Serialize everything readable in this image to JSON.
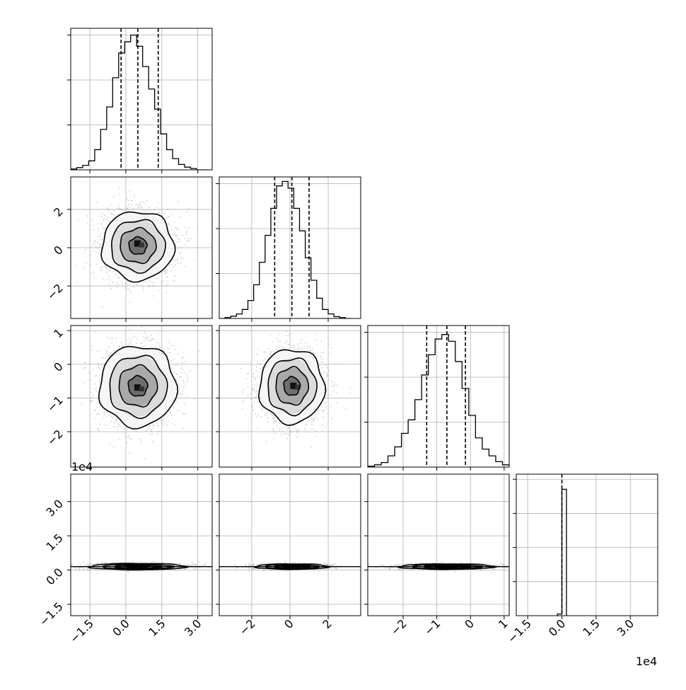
{
  "chart_data": {
    "type": "corner",
    "grid": true,
    "variables": [
      {
        "index": 0,
        "range": [
          -2.3,
          3.6
        ],
        "ticks": [
          -1.5,
          0.0,
          1.5,
          3.0
        ],
        "tick_labels": [
          "−1.5",
          "0.0",
          "1.5",
          "3.0"
        ],
        "quantiles": [
          -0.2,
          0.5,
          1.35
        ],
        "hist_peak": 3.0
      },
      {
        "index": 1,
        "range": [
          -3.7,
          3.7
        ],
        "ticks": [
          -2,
          0,
          2
        ],
        "tick_labels": [
          "−2",
          "0",
          "2"
        ],
        "quantiles": [
          -0.8,
          0.1,
          1.0
        ],
        "hist_peak": 3.0
      },
      {
        "index": 2,
        "range": [
          -3.05,
          1.15
        ],
        "ticks": [
          -2,
          -1,
          0,
          1
        ],
        "tick_labels": [
          "−2",
          "−1",
          "0",
          "1"
        ],
        "quantiles": [
          -1.3,
          -0.7,
          -0.15
        ],
        "hist_peak": 3.0
      },
      {
        "index": 3,
        "range": [
          -2.0,
          4.2
        ],
        "ticks": [
          -1.5,
          0.0,
          1.5,
          3.0
        ],
        "tick_labels": [
          "−1.5",
          "0.0",
          "1.5",
          "3.0"
        ],
        "quantiles": [
          0.0
        ],
        "hist_peak": 4.0,
        "scale_label": "1e4"
      }
    ],
    "histograms": [
      {
        "var": 0,
        "edges": [
          -2.3,
          -2.05,
          -1.8,
          -1.55,
          -1.3,
          -1.05,
          -0.8,
          -0.55,
          -0.3,
          -0.05,
          0.2,
          0.45,
          0.7,
          0.95,
          1.2,
          1.45,
          1.7,
          1.95,
          2.2,
          2.45,
          2.7,
          2.95,
          3.2,
          3.45
        ],
        "counts": [
          0.02,
          0.05,
          0.1,
          0.2,
          0.45,
          0.9,
          1.4,
          2.05,
          2.6,
          2.85,
          3.0,
          2.75,
          2.3,
          1.8,
          1.35,
          0.8,
          0.45,
          0.25,
          0.12,
          0.06,
          0.03,
          0.0,
          0.0
        ]
      },
      {
        "var": 1,
        "edges": [
          -3.7,
          -3.4,
          -3.1,
          -2.8,
          -2.5,
          -2.2,
          -1.9,
          -1.6,
          -1.3,
          -1.0,
          -0.7,
          -0.4,
          -0.1,
          0.2,
          0.5,
          0.8,
          1.1,
          1.4,
          1.7,
          2.0,
          2.3,
          2.6,
          2.9,
          3.2
        ],
        "counts": [
          0.0,
          0.02,
          0.05,
          0.1,
          0.2,
          0.4,
          0.75,
          1.25,
          1.85,
          2.45,
          2.95,
          3.05,
          2.9,
          2.45,
          1.95,
          1.35,
          0.85,
          0.45,
          0.2,
          0.1,
          0.04,
          0.02,
          0.0
        ]
      },
      {
        "var": 2,
        "edges": [
          -3.05,
          -2.85,
          -2.65,
          -2.45,
          -2.25,
          -2.05,
          -1.85,
          -1.65,
          -1.45,
          -1.25,
          -1.05,
          -0.85,
          -0.65,
          -0.45,
          -0.25,
          -0.05,
          0.15,
          0.35,
          0.55,
          0.75,
          0.95,
          1.15
        ],
        "counts": [
          0.02,
          0.05,
          0.1,
          0.25,
          0.45,
          0.75,
          1.05,
          1.5,
          2.05,
          2.5,
          2.85,
          2.95,
          2.8,
          2.35,
          1.75,
          1.15,
          0.65,
          0.4,
          0.25,
          0.12,
          0.05
        ]
      },
      {
        "var": 3,
        "edges": [
          -0.2,
          -0.05,
          0.0,
          0.05,
          0.1,
          0.15,
          0.2,
          0.25
        ],
        "counts": [
          0.05,
          0.05,
          3.75,
          3.75,
          3.75,
          3.75,
          0.0
        ]
      }
    ],
    "pairs": [
      {
        "x": 0,
        "y": 1,
        "mean": [
          0.5,
          0.1
        ],
        "sigma": [
          0.75,
          0.9
        ],
        "core": [
          0.5,
          0.2
        ]
      },
      {
        "x": 0,
        "y": 2,
        "mean": [
          0.5,
          -0.65
        ],
        "sigma": [
          0.8,
          0.6
        ],
        "core": [
          0.5,
          -0.7
        ]
      },
      {
        "x": 1,
        "y": 2,
        "mean": [
          0.1,
          -0.65
        ],
        "sigma": [
          0.85,
          0.55
        ],
        "core": [
          0.2,
          -0.65
        ]
      },
      {
        "x": 0,
        "y": 3,
        "mean": [
          0.5,
          0.15
        ],
        "sigma": [
          1.0,
          0.07
        ],
        "core": [
          0.5,
          0.15
        ]
      },
      {
        "x": 1,
        "y": 3,
        "mean": [
          0.1,
          0.15
        ],
        "sigma": [
          0.95,
          0.06
        ],
        "core": [
          0.1,
          0.15
        ]
      },
      {
        "x": 2,
        "y": 3,
        "mean": [
          -0.7,
          0.15
        ],
        "sigma": [
          0.7,
          0.06
        ],
        "core": [
          -0.7,
          0.15
        ]
      }
    ],
    "contour_levels_sigma": [
      0.5,
      1.0,
      1.5,
      2.0
    ]
  },
  "labels": {
    "y_offset_label": "1e4",
    "x_offset_label": "1e4"
  },
  "colors": {
    "line": "#000000",
    "grid": "#b0b0b0",
    "scatter": "#9a9a9a"
  }
}
